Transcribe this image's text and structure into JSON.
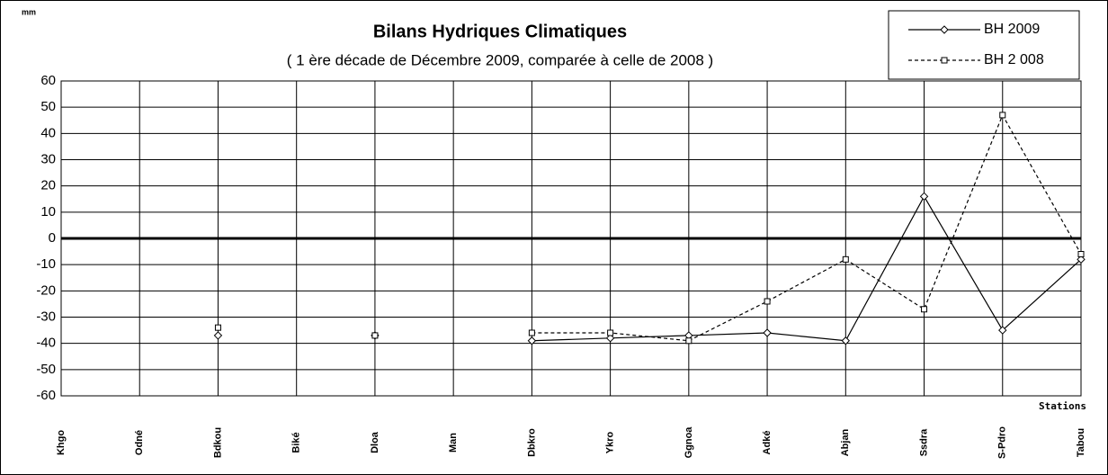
{
  "chart_data": {
    "type": "line",
    "title": "Bilans Hydriques Climatiques",
    "subtitle": "( 1 ère décade de Décembre  2009, comparée à celle de 2008 )",
    "y_label": "mm",
    "x_label": "Stations",
    "categories": [
      "Khgo",
      "Odné",
      "Bdkou",
      "Biké",
      "Dloa",
      "Man",
      "Dbkro",
      "Ykro",
      "Ggnoa",
      "Adké",
      "Abjan",
      "Ssdra",
      "S-Pdro",
      "Tabou"
    ],
    "series": [
      {
        "name": "BH 2009",
        "color": "#000000",
        "line_style": "solid",
        "marker": "diamond",
        "values": [
          null,
          null,
          -37,
          null,
          -37,
          null,
          -39,
          -38,
          -37,
          -36,
          -39,
          16,
          -35,
          -8
        ]
      },
      {
        "name": "BH 2 008",
        "color": "#000000",
        "line_style": "dashed",
        "marker": "square",
        "values": [
          null,
          null,
          -34,
          null,
          -37,
          null,
          -36,
          -36,
          -39,
          -24,
          -8,
          -27,
          47,
          -6
        ]
      }
    ],
    "ylim": [
      -60,
      60
    ],
    "yticks": [
      -60,
      -50,
      -40,
      -30,
      -20,
      -10,
      0,
      10,
      20,
      30,
      40,
      50,
      60
    ],
    "grid": true,
    "legend": "top-right"
  }
}
